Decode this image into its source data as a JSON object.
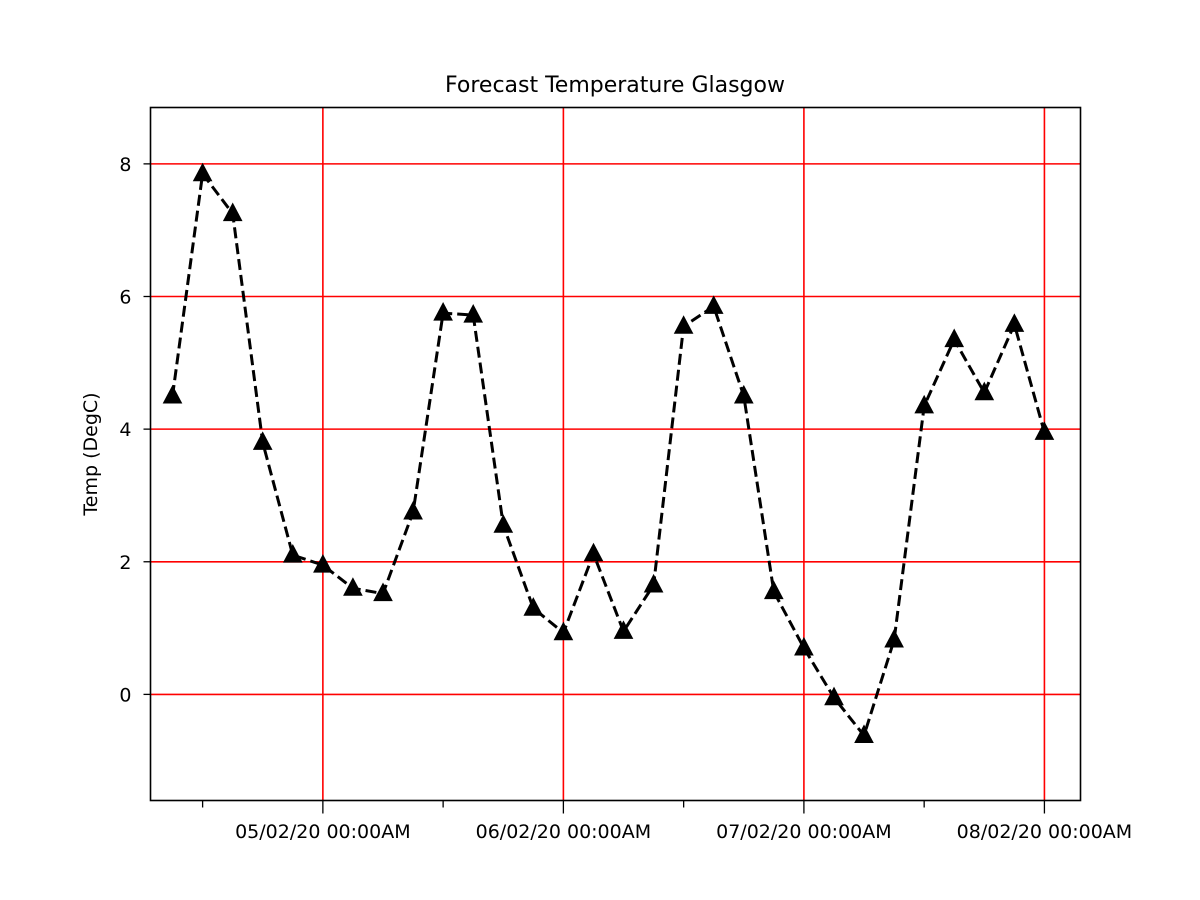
{
  "chart_data": {
    "type": "line",
    "title": "Forecast Temperature Glasgow",
    "xlabel": "",
    "ylabel": "Temp (DegC)",
    "ylim": [
      -1.6,
      8.85
    ],
    "yticks": [
      0,
      2,
      4,
      6,
      8
    ],
    "xlim": [
      "2020-02-04 06:48",
      "2020-02-08 03:36"
    ],
    "xticks_major": [
      {
        "x": "2020-02-05 00:00",
        "label": "05/02/20 00:00AM"
      },
      {
        "x": "2020-02-06 00:00",
        "label": "06/02/20 00:00AM"
      },
      {
        "x": "2020-02-07 00:00",
        "label": "07/02/20 00:00AM"
      },
      {
        "x": "2020-02-08 00:00",
        "label": "08/02/20 00:00AM"
      }
    ],
    "xticks_minor": [
      "2020-02-04 12:00",
      "2020-02-05 12:00",
      "2020-02-06 12:00",
      "2020-02-07 12:00"
    ],
    "grid": true,
    "grid_color": "#ff0000",
    "line_color": "#000000",
    "line_style": "dashed",
    "marker": "triangle-up",
    "series": [
      {
        "x": [
          "2020-02-04 09:00",
          "2020-02-04 12:00",
          "2020-02-04 15:00",
          "2020-02-04 18:00",
          "2020-02-04 21:00",
          "2020-02-05 00:00",
          "2020-02-05 03:00",
          "2020-02-05 06:00",
          "2020-02-05 09:00",
          "2020-02-05 12:00",
          "2020-02-05 15:00",
          "2020-02-05 18:00",
          "2020-02-05 21:00",
          "2020-02-06 00:00",
          "2020-02-06 03:00",
          "2020-02-06 06:00",
          "2020-02-06 09:00",
          "2020-02-06 12:00",
          "2020-02-06 15:00",
          "2020-02-06 18:00",
          "2020-02-06 21:00",
          "2020-02-07 00:00",
          "2020-02-07 03:00",
          "2020-02-07 06:00",
          "2020-02-07 09:00",
          "2020-02-07 12:00",
          "2020-02-07 15:00",
          "2020-02-07 18:00",
          "2020-02-07 21:00",
          "2020-02-08 00:00"
        ],
        "values": [
          4.5,
          7.85,
          7.25,
          3.8,
          2.1,
          1.95,
          1.6,
          1.52,
          2.75,
          5.75,
          5.72,
          2.55,
          1.3,
          0.93,
          2.12,
          0.95,
          1.65,
          5.55,
          5.85,
          4.5,
          1.55,
          0.7,
          -0.05,
          -0.62,
          0.82,
          4.35,
          5.35,
          4.55,
          5.58,
          3.95
        ]
      }
    ]
  }
}
